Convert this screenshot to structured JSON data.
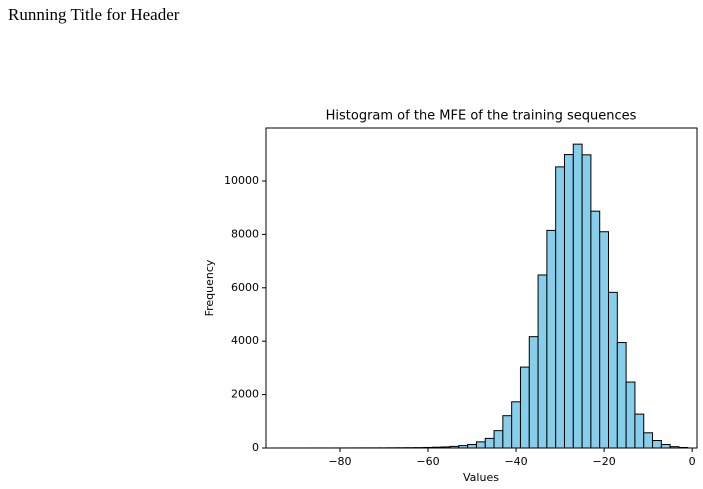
{
  "header": {
    "title": "Running Title for Header"
  },
  "chart_data": {
    "type": "histogram",
    "title": "Histogram of the MFE of the training sequences",
    "x_label": "Values",
    "y_label": "Frequency",
    "color": "#87ceeb",
    "edge_color": "#000000",
    "bins": [
      -95,
      -93,
      -91,
      -89,
      -87,
      -85,
      -83,
      -81,
      -79,
      -77,
      -75,
      -73,
      -71,
      -69,
      -67,
      -65,
      -63,
      -61,
      -59,
      -57,
      -55,
      -53,
      -51,
      -49,
      -47,
      -45,
      -43,
      -41,
      -39,
      -37,
      -35,
      -33,
      -31,
      -29,
      -27,
      -25,
      -23,
      -21,
      -19,
      -17,
      -15,
      -13,
      -11,
      -9,
      -7,
      -5,
      -3,
      -1
    ],
    "counts": [
      1,
      1,
      1,
      1,
      2,
      2,
      2,
      3,
      3,
      4,
      5,
      5,
      6,
      8,
      10,
      12,
      15,
      20,
      30,
      40,
      60,
      90,
      130,
      230,
      360,
      650,
      1210,
      1730,
      3030,
      4170,
      6480,
      8150,
      10530,
      10990,
      11380,
      10980,
      8870,
      8100,
      5830,
      3950,
      2470,
      1270,
      570,
      280,
      130,
      50,
      20
    ],
    "xlim": [
      -96.8,
      1.1
    ],
    "ylim": [
      0,
      11985
    ],
    "xticks": [
      {
        "value": -80,
        "label": "−80"
      },
      {
        "value": -60,
        "label": "−60"
      },
      {
        "value": -40,
        "label": "−40"
      },
      {
        "value": -20,
        "label": "−20"
      },
      0
    ],
    "yticks": [
      0,
      2000,
      4000,
      6000,
      8000,
      10000
    ]
  }
}
